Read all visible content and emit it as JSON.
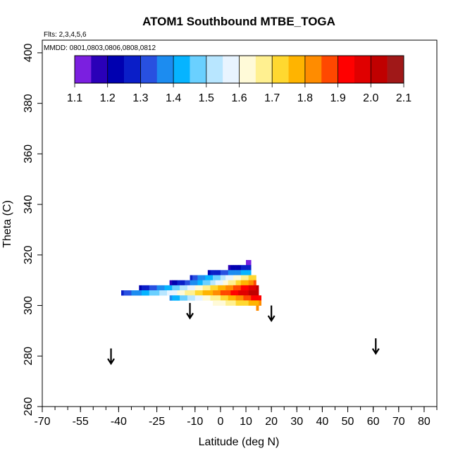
{
  "chart_data": {
    "type": "heatmap",
    "title": "ATOM1 Southbound MTBE_TOGA",
    "flights_note": "Flts: 2,3,4,5,6",
    "dates_note": "MMDD: 0801,0803,0806,0808,0812",
    "xlabel": "Latitude (deg N)",
    "ylabel": "Theta (C)",
    "xlim": [
      -70,
      85
    ],
    "ylim": [
      260,
      405
    ],
    "x_ticks": [
      -70,
      -55,
      -40,
      -25,
      -10,
      0,
      10,
      20,
      30,
      40,
      50,
      60,
      70,
      80
    ],
    "y_ticks": [
      260,
      280,
      300,
      320,
      340,
      360,
      380,
      400
    ],
    "colorbar": {
      "min": 1.1,
      "max": 2.1,
      "ticks": [
        "1.1",
        "1.2",
        "1.3",
        "1.4",
        "1.5",
        "1.6",
        "1.7",
        "1.8",
        "1.9",
        "2.0",
        "2.1"
      ],
      "colors": [
        "#7b1fe0",
        "#2a00b8",
        "#0000b0",
        "#0a1ec8",
        "#2850e0",
        "#1c8cf0",
        "#06b4ff",
        "#6ad0ff",
        "#b8e6ff",
        "#e8f4ff",
        "#fffad8",
        "#fff090",
        "#ffd830",
        "#ffb400",
        "#ff8c00",
        "#ff4800",
        "#ff0000",
        "#e00000",
        "#c00000",
        "#a01818"
      ]
    },
    "arrows": [
      {
        "lat": -43,
        "theta": 280
      },
      {
        "lat": -12,
        "theta": 298
      },
      {
        "lat": 20,
        "theta": 297
      },
      {
        "lat": 61,
        "theta": 284
      }
    ],
    "heatmap_rows": [
      {
        "theta": 317,
        "lat_start": 10,
        "lat_end": 12,
        "v_start": 1.1,
        "v_end": 1.15
      },
      {
        "theta": 315,
        "lat_start": 3,
        "lat_end": 12,
        "v_start": 1.2,
        "v_end": 1.3
      },
      {
        "theta": 313,
        "lat_start": -5,
        "lat_end": 12,
        "v_start": 1.25,
        "v_end": 1.45
      },
      {
        "theta": 311,
        "lat_start": -12,
        "lat_end": 14,
        "v_start": 1.3,
        "v_end": 1.75
      },
      {
        "theta": 309,
        "lat_start": -20,
        "lat_end": 14,
        "v_start": 1.2,
        "v_end": 1.85
      },
      {
        "theta": 307,
        "lat_start": -32,
        "lat_end": 15,
        "v_start": 1.25,
        "v_end": 2.0
      },
      {
        "theta": 305,
        "lat_start": -39,
        "lat_end": 15,
        "v_start": 1.3,
        "v_end": 2.05
      },
      {
        "theta": 303,
        "lat_start": -20,
        "lat_end": 16,
        "v_start": 1.4,
        "v_end": 1.95
      },
      {
        "theta": 301,
        "lat_start": -3,
        "lat_end": 16,
        "v_start": 1.6,
        "v_end": 1.8
      },
      {
        "theta": 299,
        "lat_start": 14,
        "lat_end": 15,
        "v_start": 1.78,
        "v_end": 1.8
      }
    ]
  }
}
